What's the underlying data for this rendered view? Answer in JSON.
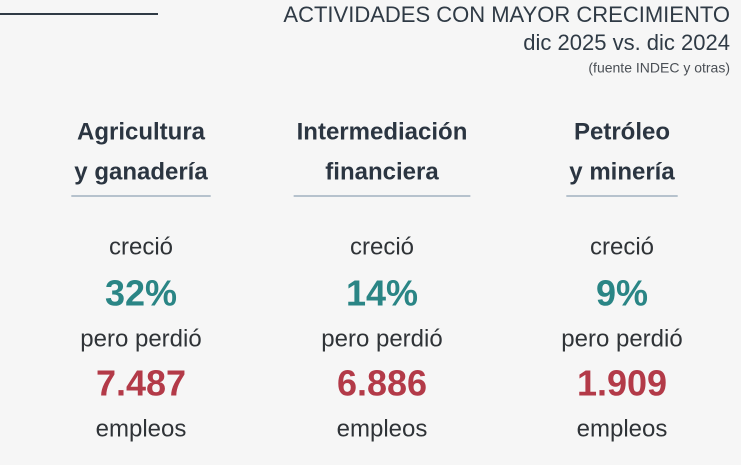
{
  "header": {
    "title": "ACTIVIDADES CON MAYOR CRECIMIENTO",
    "subtitle": "dic 2025 vs. dic 2024",
    "source": "(fuente INDEC y otras)"
  },
  "columns": [
    {
      "title_lines": [
        "Agricultura",
        "y ganadería"
      ],
      "grew_label": "creció",
      "growth": "32%",
      "lost_label": "pero perdió",
      "jobs": "7.487",
      "jobs_unit": "empleos"
    },
    {
      "title_lines": [
        "Intermediación",
        "financiera"
      ],
      "grew_label": "creció",
      "growth": "14%",
      "lost_label": "pero perdió",
      "jobs": "6.886",
      "jobs_unit": "empleos"
    },
    {
      "title_lines": [
        "Petróleo",
        "y minería"
      ],
      "grew_label": "creció",
      "growth": "9%",
      "lost_label": "pero perdió",
      "jobs": "1.909",
      "jobs_unit": "empleos"
    }
  ]
}
